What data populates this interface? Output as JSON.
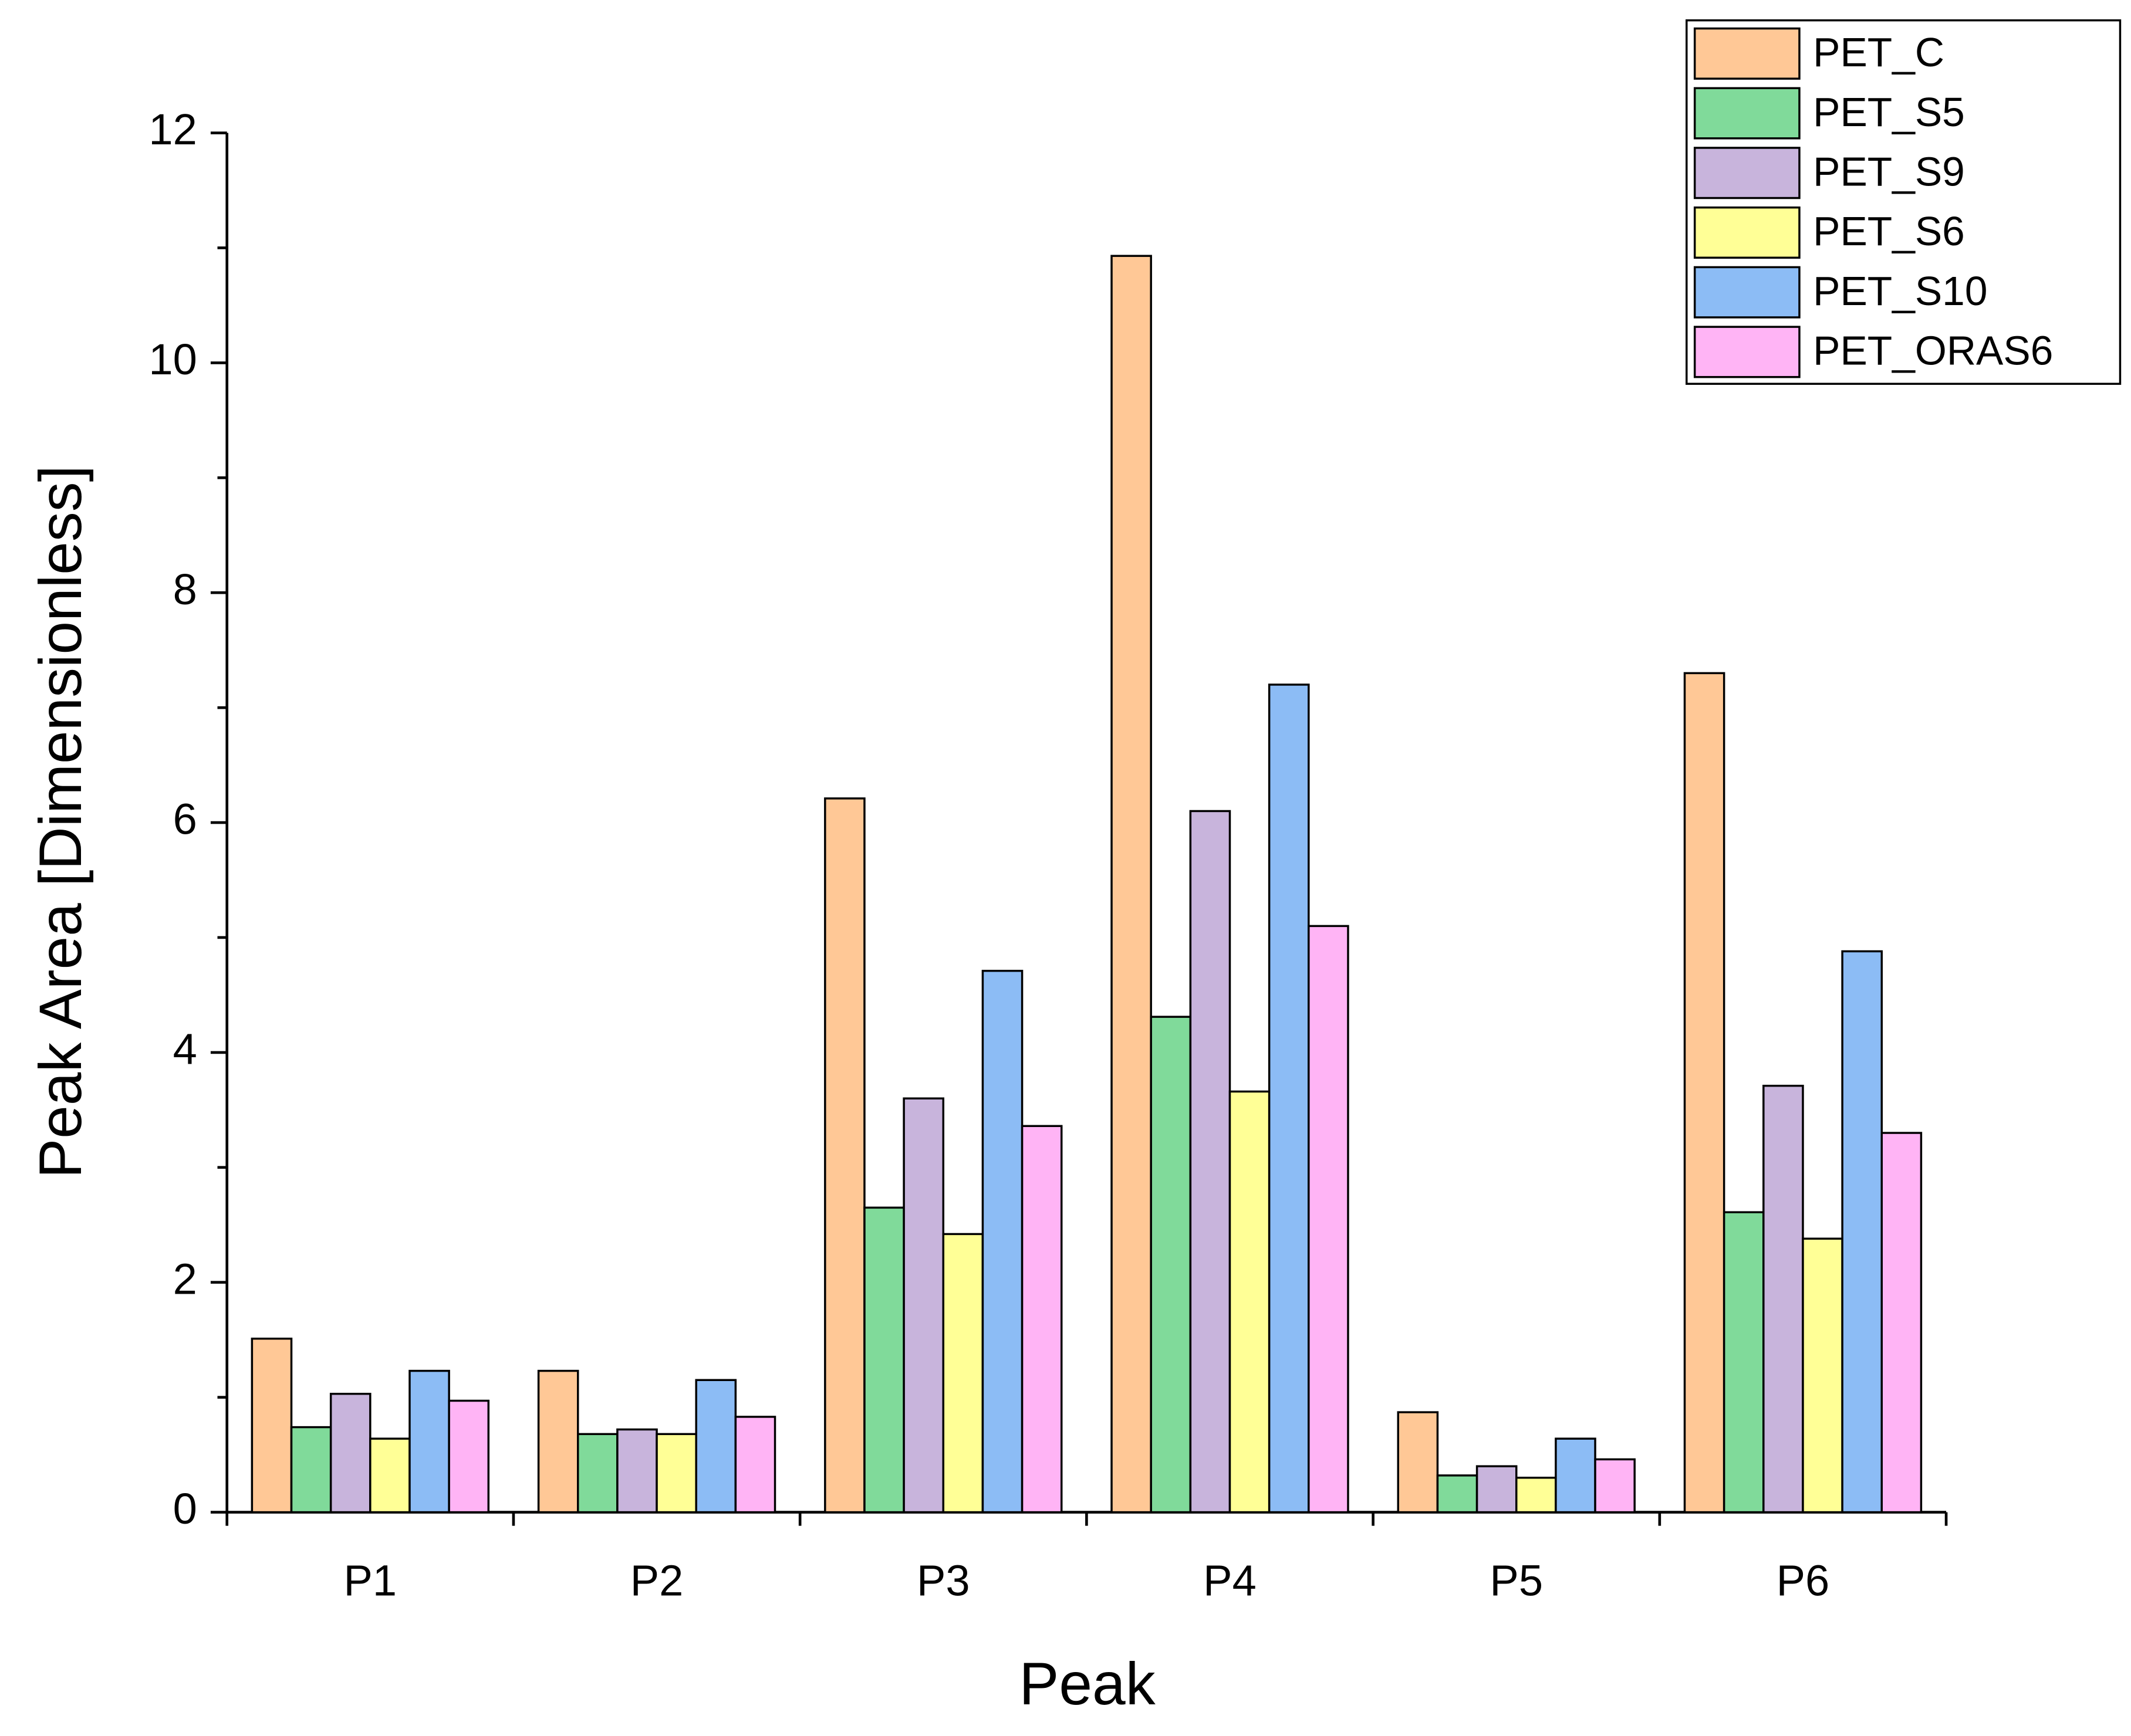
{
  "chart_data": {
    "type": "bar",
    "x_label": "Peak",
    "y_label": "Peak Area [Dimensionless]",
    "categories": [
      "P1",
      "P2",
      "P3",
      "P4",
      "P5",
      "P6"
    ],
    "series": [
      {
        "name": "PET_C",
        "color": "#ffc896",
        "values": [
          1.51,
          1.23,
          6.21,
          10.93,
          0.87,
          7.3
        ]
      },
      {
        "name": "PET_S5",
        "color": "#80da9a",
        "values": [
          0.74,
          0.68,
          2.65,
          4.31,
          0.32,
          2.61
        ]
      },
      {
        "name": "PET_S9",
        "color": "#c8b4dc",
        "values": [
          1.03,
          0.72,
          3.6,
          6.1,
          0.4,
          3.71
        ]
      },
      {
        "name": "PET_S6",
        "color": "#ffff96",
        "values": [
          0.64,
          0.68,
          2.42,
          3.66,
          0.3,
          2.38
        ]
      },
      {
        "name": "PET_S10",
        "color": "#8cbcf5",
        "values": [
          1.23,
          1.15,
          4.71,
          7.2,
          0.64,
          4.88
        ]
      },
      {
        "name": "PET_ORAS6",
        "color": "#ffb4f5",
        "values": [
          0.97,
          0.83,
          3.36,
          5.1,
          0.46,
          3.3
        ]
      }
    ],
    "ylim": [
      0,
      12
    ],
    "yticks": [
      0,
      2,
      4,
      6,
      8,
      10,
      12
    ],
    "legend": "top-right",
    "grid": false
  }
}
